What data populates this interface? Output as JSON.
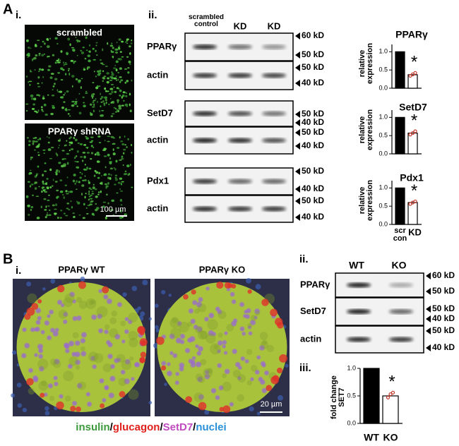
{
  "panel_a": {
    "label": "A",
    "image_panel": "i.",
    "blot_panel": "ii.",
    "images": [
      {
        "label": "scrambled"
      },
      {
        "label": "PPARγ shRNA"
      }
    ],
    "scale_bar": "100 µm",
    "blot_columns": [
      "scrambled control",
      "KD",
      "KD"
    ],
    "blots": [
      {
        "label": "PPARγ",
        "markers": [
          "60 kD",
          "50 kD"
        ]
      },
      {
        "label": "actin",
        "markers": [
          "50 kD",
          "40 kD"
        ]
      },
      {
        "label": "SetD7",
        "markers": [
          "50 kD",
          "40 kD"
        ]
      },
      {
        "label": "actin",
        "markers": [
          "50 kD",
          "40 kD"
        ]
      },
      {
        "label": "Pdx1",
        "markers": [
          "50 kD",
          "40 kD"
        ]
      },
      {
        "label": "actin",
        "markers": [
          "50 kD",
          "40 kD"
        ]
      }
    ],
    "chart_categories": [
      "scr con",
      "KD"
    ],
    "charts": [
      {
        "type": "bar",
        "title": "PPARγ",
        "y_label": "relative expression",
        "values": [
          1.0,
          0.37
        ],
        "points": [
          0.34,
          0.38,
          0.42
        ],
        "significance": "*",
        "ylim": [
          0,
          1.2
        ],
        "yticks": [
          {
            "value": 0,
            "label": "0.0"
          },
          {
            "value": 0.5,
            "label": "0.5"
          },
          {
            "value": 1,
            "label": "1.0"
          }
        ],
        "colors": [
          "#000000",
          "#ffffff"
        ],
        "point_color": "#c0392b"
      },
      {
        "type": "bar",
        "title": "SetD7",
        "y_label": "relative expression",
        "values": [
          1.0,
          0.57
        ],
        "points": [
          0.53,
          0.57,
          0.62
        ],
        "significance": "*",
        "ylim": [
          0,
          1.2
        ],
        "yticks": [
          {
            "value": 0,
            "label": "0.0"
          },
          {
            "value": 0.5,
            "label": "0.5"
          },
          {
            "value": 1,
            "label": "1.0"
          }
        ],
        "colors": [
          "#000000",
          "#ffffff"
        ],
        "point_color": "#c0392b"
      },
      {
        "type": "bar",
        "title": "Pdx1",
        "y_label": "relative expression",
        "values": [
          1.0,
          0.6
        ],
        "points": [
          0.56,
          0.6,
          0.63
        ],
        "significance": "*",
        "ylim": [
          0,
          1.2
        ],
        "yticks": [
          {
            "value": 0,
            "label": "0.0"
          },
          {
            "value": 0.5,
            "label": "0.5"
          },
          {
            "value": 1,
            "label": "1.0"
          }
        ],
        "colors": [
          "#000000",
          "#ffffff"
        ],
        "point_color": "#c0392b"
      }
    ]
  },
  "panel_b": {
    "label": "B",
    "image_panel": "i.",
    "blot_panel": "ii.",
    "chart_panel": "iii.",
    "images": [
      {
        "label": "PPARγ WT"
      },
      {
        "label": "PPARγ KO"
      }
    ],
    "scale_bar": "20 µm",
    "caption": [
      {
        "text": "insulin",
        "color": "#3d9a3d"
      },
      {
        "text": "/",
        "color": "#000000"
      },
      {
        "text": "glucagon",
        "color": "#e0201c"
      },
      {
        "text": "/",
        "color": "#000000"
      },
      {
        "text": "SetD7",
        "color": "#c04ac0"
      },
      {
        "text": "/",
        "color": "#000000"
      },
      {
        "text": "nuclei",
        "color": "#2a90d8"
      }
    ],
    "blot_columns": [
      "WT",
      "KO"
    ],
    "blots": [
      {
        "label": "PPARγ",
        "markers": [
          "60 kD",
          "50 kD"
        ]
      },
      {
        "label": "SetD7",
        "markers": [
          "50 kD",
          "40 kD"
        ]
      },
      {
        "label": "actin",
        "markers": [
          "50 kD",
          "40 kD"
        ]
      }
    ],
    "chart": {
      "type": "bar",
      "y_label": "fold change SET7",
      "categories": [
        "WT",
        "KO"
      ],
      "values": [
        1.0,
        0.5
      ],
      "points": [
        0.47,
        0.53,
        0.56
      ],
      "significance": "*",
      "ylim": [
        0,
        1.0
      ],
      "yticks": [
        {
          "value": 0,
          "label": "0.0"
        },
        {
          "value": 0.5,
          "label": "0.5"
        },
        {
          "value": 1,
          "label": "1.0"
        }
      ],
      "colors": [
        "#000000",
        "#ffffff"
      ],
      "point_color": "#c0392b"
    }
  }
}
